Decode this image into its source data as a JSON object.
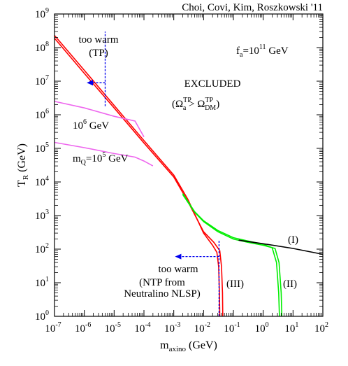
{
  "chart_data": {
    "type": "line",
    "title": "",
    "credit": "Choi, Covi, Kim, Roszkowski '11",
    "xlabel": {
      "main": "m",
      "sub": "axino",
      "unit": "(GeV)"
    },
    "ylabel": {
      "main": "T",
      "sub": "R",
      "unit": "(GeV)"
    },
    "x_scale": "log",
    "y_scale": "log",
    "xlim": [
      1e-07,
      100
    ],
    "ylim": [
      1,
      1000000000.0
    ],
    "grid": false,
    "x_ticks": [
      {
        "v": 1e-07,
        "base": "10",
        "exp": "-7"
      },
      {
        "v": 1e-06,
        "base": "10",
        "exp": "-6"
      },
      {
        "v": 1e-05,
        "base": "10",
        "exp": "-5"
      },
      {
        "v": 0.0001,
        "base": "10",
        "exp": "-4"
      },
      {
        "v": 0.001,
        "base": "10",
        "exp": "-3"
      },
      {
        "v": 0.01,
        "base": "10",
        "exp": "-2"
      },
      {
        "v": 0.1,
        "base": "10",
        "exp": "-1"
      },
      {
        "v": 1,
        "base": "10",
        "exp": "0"
      },
      {
        "v": 10,
        "base": "10",
        "exp": "1"
      },
      {
        "v": 100,
        "base": "10",
        "exp": "2"
      }
    ],
    "y_ticks": [
      {
        "v": 1,
        "base": "10",
        "exp": "0"
      },
      {
        "v": 10,
        "base": "10",
        "exp": "1"
      },
      {
        "v": 100,
        "base": "10",
        "exp": "2"
      },
      {
        "v": 1000,
        "base": "10",
        "exp": "3"
      },
      {
        "v": 10000.0,
        "base": "10",
        "exp": "4"
      },
      {
        "v": 100000.0,
        "base": "10",
        "exp": "5"
      },
      {
        "v": 1000000.0,
        "base": "10",
        "exp": "6"
      },
      {
        "v": 10000000.0,
        "base": "10",
        "exp": "7"
      },
      {
        "v": 100000000.0,
        "base": "10",
        "exp": "8"
      },
      {
        "v": 1000000000.0,
        "base": "10",
        "exp": "9"
      }
    ],
    "series": [
      {
        "color": "#ff0000",
        "points": [
          [
            1e-07,
            230000000.0
          ],
          [
            1e-06,
            21000000.0
          ],
          [
            1e-05,
            1900000.0
          ],
          [
            0.0001,
            170000.0
          ],
          [
            0.001,
            16000.0
          ],
          [
            0.003,
            3000.0
          ],
          [
            0.01,
            300.0
          ],
          [
            0.02,
            130.0
          ],
          [
            0.028,
            80.0
          ],
          [
            0.032,
            30.0
          ],
          [
            0.034,
            5
          ],
          [
            0.035,
            1
          ]
        ]
      },
      {
        "color": "#ff0000",
        "points": [
          [
            1e-07,
            190000000.0
          ],
          [
            1e-06,
            17000000.0
          ],
          [
            1e-05,
            1600000.0
          ],
          [
            0.0001,
            145000.0
          ],
          [
            0.001,
            14000.0
          ],
          [
            0.003,
            2600.0
          ],
          [
            0.01,
            330.0
          ],
          [
            0.022,
            160.0
          ],
          [
            0.035,
            90.0
          ],
          [
            0.04,
            30.0
          ],
          [
            0.043,
            5
          ],
          [
            0.044,
            1
          ]
        ]
      },
      {
        "color": "#00ee00",
        "points": [
          [
            0.002,
            4500.0
          ],
          [
            0.005,
            1300.0
          ],
          [
            0.01,
            700.0
          ],
          [
            0.03,
            360.0
          ],
          [
            0.1,
            220.0
          ],
          [
            0.3,
            175.0
          ],
          [
            1,
            140.0
          ],
          [
            2,
            110.0
          ],
          [
            2.8,
            40.0
          ],
          [
            3.3,
            5
          ],
          [
            3.5,
            1
          ]
        ]
      },
      {
        "color": "#00ee00",
        "points": [
          [
            0.002,
            4200.0
          ],
          [
            0.005,
            1250.0
          ],
          [
            0.01,
            660.0
          ],
          [
            0.03,
            330.0
          ],
          [
            0.1,
            200.0
          ],
          [
            0.3,
            160.0
          ],
          [
            1,
            130.0
          ],
          [
            2.5,
            105.0
          ],
          [
            3.4,
            40.0
          ],
          [
            4,
            5
          ],
          [
            4.2,
            1
          ]
        ]
      },
      {
        "color": "#000000",
        "points": [
          [
            0.15,
            185.0
          ],
          [
            1,
            145.0
          ],
          [
            10,
            105.0
          ],
          [
            100,
            70.0
          ]
        ]
      },
      {
        "color": "#ee66ee",
        "points": [
          [
            1e-07,
            2500000.0
          ],
          [
            1e-06,
            1600000.0
          ],
          [
            1e-05,
            900000.0
          ],
          [
            5e-05,
            650000.0
          ],
          [
            0.0001,
            220000.0
          ]
        ]
      },
      {
        "color": "#ee66ee",
        "points": [
          [
            1e-07,
            150000.0
          ],
          [
            1e-06,
            105000.0
          ],
          [
            1e-05,
            70000.0
          ],
          [
            5e-05,
            55000.0
          ],
          [
            0.0001,
            42000.0
          ],
          [
            0.0002,
            30000.0
          ]
        ]
      }
    ],
    "blue_markers": [
      {
        "color": "#0000ee",
        "vertical": {
          "x": 5e-06,
          "y_from": 1800000.0,
          "y_to": 300000000.0
        },
        "arrow": {
          "y": 9000000.0,
          "x_from": 5e-06,
          "x_to": 1.2e-06
        }
      },
      {
        "color": "#0000ee",
        "vertical": {
          "x": 0.033,
          "y_from": 1,
          "y_to": 180.0
        },
        "arrow": {
          "y": 60.0,
          "x_from": 0.033,
          "x_to": 0.0011
        }
      }
    ],
    "annotations": {
      "fa": {
        "text": "f",
        "sub": "a",
        "mid": "=10",
        "sup": "11",
        "tail": " GeV"
      },
      "excluded": "EXCLUDED",
      "omega": {
        "open": "(Ω",
        "sup1": "TP",
        "sub1": "a",
        "mid": " > Ω",
        "sup2": "TP",
        "sub2": "DM",
        "close": ")"
      },
      "too_warm_tp_1": "too warm",
      "too_warm_tp_2": "(TP)",
      "m6": {
        "base": "10",
        "sup": "6",
        "tail": " GeV"
      },
      "mq": {
        "m": "m",
        "sub": "Q",
        "mid": "=10",
        "sup": "5",
        "tail": " GeV"
      },
      "too_warm_ntp_1": "too warm",
      "too_warm_ntp_2": "(NTP from",
      "too_warm_ntp_3": "Neutralino NLSP)",
      "label_I": "(I)",
      "label_II": "(II)",
      "label_III": "(III)"
    }
  }
}
